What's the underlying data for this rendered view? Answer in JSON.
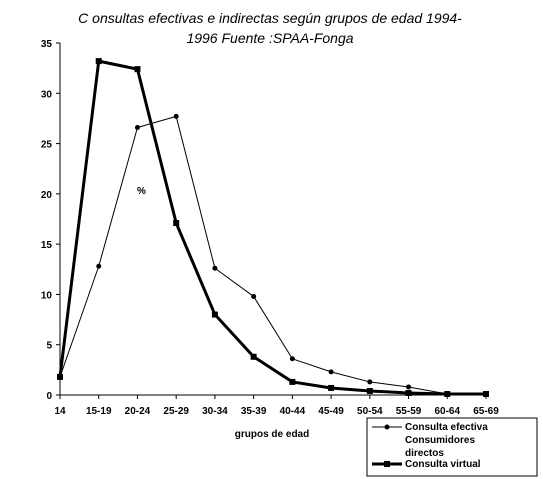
{
  "chart_data": {
    "type": "line",
    "title_line1": "C onsultas efectivas e indirectas según  grupos de edad 1994-",
    "title_line2": "1996 Fuente :SPAA-Fonga",
    "xlabel": "grupos de edad",
    "ylabel": "%",
    "ylim": [
      0,
      35
    ],
    "yticks": [
      0,
      5,
      10,
      15,
      20,
      25,
      30,
      35
    ],
    "grid": false,
    "legend_position": "bottom-right",
    "categories": [
      "14",
      "15-19",
      "20-24",
      "25-29",
      "30-34",
      "35-39",
      "40-44",
      "45-49",
      "50-54",
      "55-59",
      "60-64",
      "65-69"
    ],
    "series": [
      {
        "name": "Consulta efectiva Consumidores directos",
        "legend_line1": "Consulta efectiva",
        "legend_line2": "Consumidores",
        "legend_line3": "directos",
        "marker": "circle",
        "color": "#000000",
        "values": [
          1.8,
          12.8,
          26.6,
          27.7,
          12.6,
          9.8,
          3.6,
          2.3,
          1.3,
          0.8,
          0.1,
          0.1
        ]
      },
      {
        "name": "Consulta virtual",
        "legend_line1": "Consulta virtual",
        "marker": "square",
        "color": "#000000",
        "values": [
          1.8,
          33.2,
          32.4,
          17.1,
          8.0,
          3.8,
          1.3,
          0.7,
          0.4,
          0.2,
          0.1,
          0.1
        ]
      }
    ]
  }
}
